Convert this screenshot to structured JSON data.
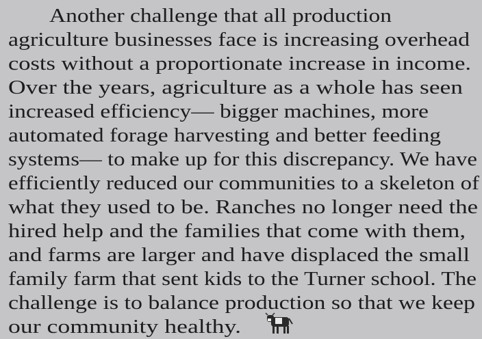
{
  "paragraph": {
    "lines": [
      "Another challenge that all production",
      "agriculture businesses face is increasing overhead",
      "costs without a proportionate increase in income.",
      "Over the years, agriculture as a whole has seen",
      "increased efficiency— bigger machines, more",
      "automated forage harvesting and better feeding",
      "systems— to make up for this discrepancy. We have",
      "efficiently reduced our communities to a skeleton of",
      "what they used to be. Ranches no longer need the",
      "hired help and the families that come with them,",
      "and farms are larger and have displaced the small",
      "family farm that sent kids to the Turner school. The",
      "challenge is to balance production so that we keep",
      "our community healthy."
    ]
  }
}
